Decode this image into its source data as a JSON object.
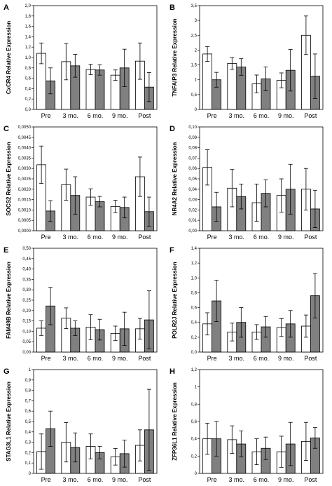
{
  "colors": {
    "light_bar": "#ffffff",
    "dark_bar": "#808080",
    "stroke": "#000000"
  },
  "chart_data": [
    {
      "type": "bar",
      "panel": "A",
      "ylabel": "CxCR4 Relative Expression",
      "categories": [
        "Pre",
        "3 mo.",
        "6 mo.",
        "9 mo.",
        "Post"
      ],
      "ylim": [
        0,
        2.0
      ],
      "yticks": [
        "0,0",
        "0,2",
        "0,4",
        "0,6",
        "0,8",
        "1,0",
        "1,2",
        "1,4",
        "1,6",
        "1,8",
        "2,0"
      ],
      "series": [
        {
          "values": [
            1.08,
            0.92,
            0.77,
            0.66,
            0.93
          ],
          "err": [
            0.2,
            0.35,
            0.1,
            0.1,
            0.35
          ]
        },
        {
          "values": [
            0.55,
            0.84,
            0.76,
            0.8,
            0.43
          ],
          "err": [
            0.25,
            0.22,
            0.1,
            0.36,
            0.28
          ]
        }
      ]
    },
    {
      "type": "bar",
      "panel": "B",
      "ylabel": "TNFAIP3 Relative Expression",
      "categories": [
        "Pre",
        "3 mo.",
        "6 mo.",
        "9 mo.",
        "Post"
      ],
      "ylim": [
        0,
        3.5
      ],
      "yticks": [
        "0",
        "0,5",
        "1",
        "1,5",
        "2",
        "2,5",
        "3",
        "3,5"
      ],
      "series": [
        {
          "values": [
            1.87,
            1.55,
            0.86,
            0.98,
            2.5
          ],
          "err": [
            0.25,
            0.2,
            0.3,
            0.25,
            0.65
          ]
        },
        {
          "values": [
            1.0,
            1.43,
            1.03,
            1.32,
            1.12
          ],
          "err": [
            0.25,
            0.28,
            0.4,
            0.7,
            0.75
          ]
        }
      ]
    },
    {
      "type": "bar",
      "panel": "C",
      "ylabel": "SOCS2 Relative Expression",
      "categories": [
        "Pre",
        "3 mo.",
        "6 mo.",
        "9 mo.",
        "Post"
      ],
      "ylim": [
        0,
        0.005
      ],
      "yticks": [
        "0,0000",
        "0,0005",
        "0,0010",
        "0,0015",
        "0,0020",
        "0,0025",
        "0,0030",
        "0,0035",
        "0,0040",
        "0,0045",
        "0,0050"
      ],
      "series": [
        {
          "values": [
            0.00318,
            0.00222,
            0.00162,
            0.00117,
            0.0026
          ],
          "err": [
            0.0009,
            0.00075,
            0.0004,
            0.0003,
            0.00095
          ]
        },
        {
          "values": [
            0.00095,
            0.0017,
            0.0014,
            0.00112,
            0.00092
          ],
          "err": [
            0.0005,
            0.0009,
            0.00025,
            0.0005,
            0.0007
          ]
        }
      ]
    },
    {
      "type": "bar",
      "panel": "D",
      "ylabel": "NR4A2 Relative Expression",
      "categories": [
        "Pre",
        "3 mo.",
        "6 mo.",
        "9 mo.",
        "Post"
      ],
      "ylim": [
        0,
        0.1
      ],
      "yticks": [
        "0,00",
        "0,01",
        "0,02",
        "0,03",
        "0,04",
        "0,05",
        "0,06",
        "0,07",
        "0,08",
        "0,09",
        "0,10"
      ],
      "series": [
        {
          "values": [
            0.061,
            0.041,
            0.027,
            0.034,
            0.04
          ],
          "err": [
            0.017,
            0.018,
            0.018,
            0.016,
            0.02
          ]
        },
        {
          "values": [
            0.023,
            0.033,
            0.036,
            0.04,
            0.021
          ],
          "err": [
            0.014,
            0.012,
            0.013,
            0.024,
            0.018
          ]
        }
      ]
    },
    {
      "type": "bar",
      "panel": "E",
      "ylabel": "FAM49B Relative Expression",
      "categories": [
        "Pre",
        "3 mo.",
        "6 mo.",
        "9 mo.",
        "Post"
      ],
      "ylim": [
        0,
        0.5
      ],
      "yticks": [
        "0,00",
        "0,05",
        "0,10",
        "0,15",
        "0,20",
        "0,25",
        "0,30",
        "0,35",
        "0,40",
        "0,45",
        "0,50"
      ],
      "series": [
        {
          "values": [
            0.115,
            0.163,
            0.12,
            0.09,
            0.112
          ],
          "err": [
            0.035,
            0.05,
            0.06,
            0.035,
            0.05
          ]
        },
        {
          "values": [
            0.222,
            0.115,
            0.108,
            0.112,
            0.155
          ],
          "err": [
            0.09,
            0.035,
            0.05,
            0.08,
            0.14
          ]
        }
      ]
    },
    {
      "type": "bar",
      "panel": "F",
      "ylabel": "POLR2J Relative Expression",
      "categories": [
        "Pre",
        "3 mo.",
        "6 mo.",
        "9 mo.",
        "Post"
      ],
      "ylim": [
        0,
        1.4
      ],
      "yticks": [
        "0,0",
        "0,2",
        "0,4",
        "0,6",
        "0,8",
        "1,0",
        "1,2",
        "1,4"
      ],
      "series": [
        {
          "values": [
            0.38,
            0.27,
            0.27,
            0.33,
            0.35
          ],
          "err": [
            0.15,
            0.12,
            0.1,
            0.12,
            0.15
          ]
        },
        {
          "values": [
            0.69,
            0.4,
            0.34,
            0.38,
            0.76
          ],
          "err": [
            0.28,
            0.2,
            0.14,
            0.18,
            0.3
          ]
        }
      ]
    },
    {
      "type": "bar",
      "panel": "G",
      "ylabel": "STAG3L1 Relative Expression",
      "categories": [
        "Pre",
        "3 mo.",
        "6 mo.",
        "9 mo.",
        "Post"
      ],
      "ylim": [
        0,
        1.0
      ],
      "yticks": [
        "0",
        "0,1",
        "0,2",
        "0,3",
        "0,4",
        "0,5",
        "0,6",
        "0,7",
        "0,8",
        "0,9",
        "1"
      ],
      "series": [
        {
          "values": [
            0.21,
            0.3,
            0.26,
            0.16,
            0.27
          ],
          "err": [
            0.17,
            0.19,
            0.12,
            0.08,
            0.15
          ]
        },
        {
          "values": [
            0.43,
            0.25,
            0.2,
            0.19,
            0.42
          ],
          "err": [
            0.17,
            0.14,
            0.06,
            0.13,
            0.39
          ]
        }
      ]
    },
    {
      "type": "bar",
      "panel": "H",
      "ylabel": "ZFP36L1 Relative Expression",
      "categories": [
        "Pre",
        "3 mo.",
        "6 mo.",
        "9 mo.",
        "Post"
      ],
      "ylim": [
        0,
        1.2
      ],
      "yticks": [
        "0",
        "0,2",
        "0,4",
        "0,6",
        "0,8",
        "1",
        "1,2"
      ],
      "series": [
        {
          "values": [
            0.4,
            0.39,
            0.25,
            0.25,
            0.37
          ],
          "err": [
            0.18,
            0.16,
            0.15,
            0.18,
            0.22
          ]
        },
        {
          "values": [
            0.4,
            0.34,
            0.29,
            0.34,
            0.41
          ],
          "err": [
            0.2,
            0.15,
            0.13,
            0.25,
            0.12
          ]
        }
      ]
    }
  ]
}
